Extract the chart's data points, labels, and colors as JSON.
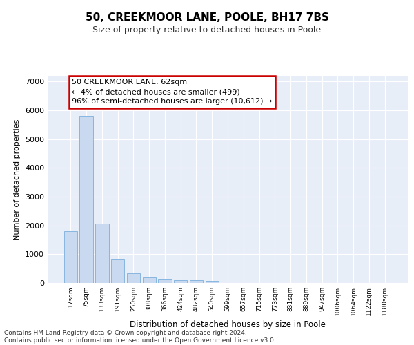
{
  "title": "50, CREEKMOOR LANE, POOLE, BH17 7BS",
  "subtitle": "Size of property relative to detached houses in Poole",
  "xlabel": "Distribution of detached houses by size in Poole",
  "ylabel": "Number of detached properties",
  "bar_color": "#c9daf0",
  "bar_edge_color": "#7aafdd",
  "background_color": "#e8eef8",
  "grid_color": "#ffffff",
  "categories": [
    "17sqm",
    "75sqm",
    "133sqm",
    "191sqm",
    "250sqm",
    "308sqm",
    "366sqm",
    "424sqm",
    "482sqm",
    "540sqm",
    "599sqm",
    "657sqm",
    "715sqm",
    "773sqm",
    "831sqm",
    "889sqm",
    "947sqm",
    "1006sqm",
    "1064sqm",
    "1122sqm",
    "1180sqm"
  ],
  "values": [
    1790,
    5800,
    2060,
    820,
    340,
    190,
    115,
    100,
    95,
    75,
    0,
    0,
    0,
    0,
    0,
    0,
    0,
    0,
    0,
    0,
    0
  ],
  "annotation_text": "50 CREEKMOOR LANE: 62sqm\n← 4% of detached houses are smaller (499)\n96% of semi-detached houses are larger (10,612) →",
  "annotation_box_color": "#ffffff",
  "annotation_border_color": "#cc0000",
  "ylim": [
    0,
    7200
  ],
  "yticks": [
    0,
    1000,
    2000,
    3000,
    4000,
    5000,
    6000,
    7000
  ],
  "footer_line1": "Contains HM Land Registry data © Crown copyright and database right 2024.",
  "footer_line2": "Contains public sector information licensed under the Open Government Licence v3.0."
}
